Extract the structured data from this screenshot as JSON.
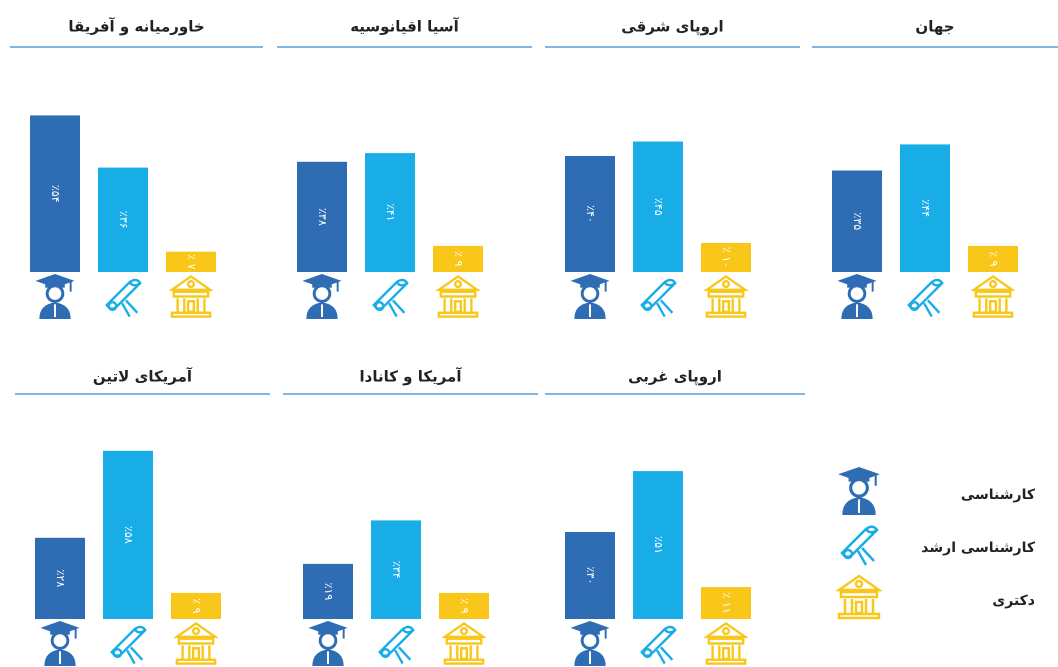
{
  "chart_data": [
    {
      "type": "bar",
      "title": "جهان",
      "values": [
        35,
        44,
        9
      ],
      "value_labels": [
        "٪۳۵",
        "٪۴۴",
        "٪ ۹"
      ]
    },
    {
      "type": "bar",
      "title": "اروپای شرقی",
      "values": [
        40,
        45,
        10
      ],
      "value_labels": [
        "٪۴۰",
        "٪۴۵",
        "٪ ۱۰"
      ]
    },
    {
      "type": "bar",
      "title": "آسیا اقیانوسیه",
      "values": [
        38,
        41,
        9
      ],
      "value_labels": [
        "٪۳۸",
        "٪۴۱",
        "٪ ۹"
      ]
    },
    {
      "type": "bar",
      "title": "خاورمیانه و آفریقا",
      "values": [
        54,
        36,
        7
      ],
      "value_labels": [
        "٪۵۴",
        "٪۳۶",
        "٪ ۷"
      ]
    },
    {
      "type": "bar",
      "title": "اروپای غربی",
      "values": [
        30,
        51,
        11
      ],
      "value_labels": [
        "٪۳۰",
        "٪۵۱",
        "٪ ۱۱"
      ]
    },
    {
      "type": "bar",
      "title": "آمریکا و کانادا",
      "values": [
        19,
        34,
        9
      ],
      "value_labels": [
        "٪۱۹",
        "٪۳۴",
        "٪ ۹"
      ]
    },
    {
      "type": "bar",
      "title": "آمریکای لاتین",
      "values": [
        28,
        58,
        9
      ],
      "value_labels": [
        "٪۲۸",
        "٪۵۸",
        "٪ ۹"
      ]
    }
  ],
  "legend": [
    {
      "name": "کارشناسی",
      "color": "#2e6db4"
    },
    {
      "name": "کارشناسی ارشد",
      "color": "#19ade8"
    },
    {
      "name": "دکتری",
      "color": "#f8c71a"
    }
  ]
}
